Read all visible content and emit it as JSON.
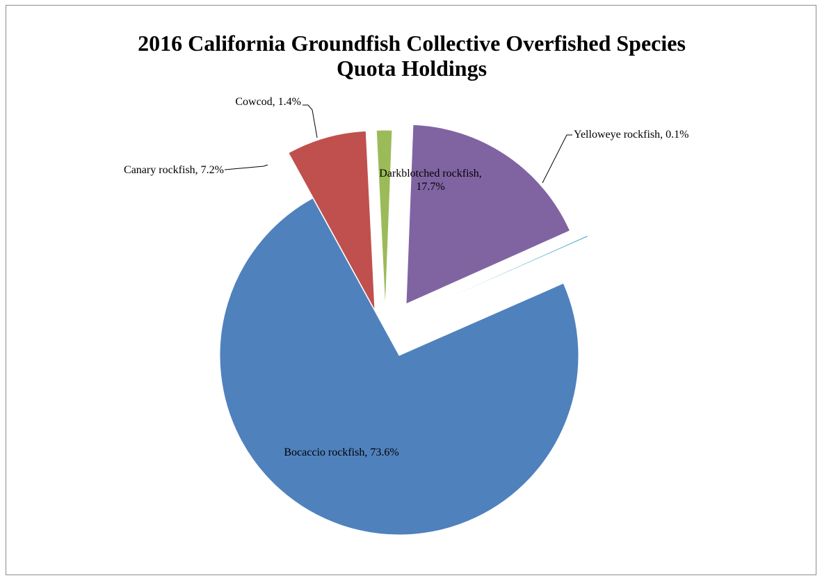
{
  "chart_data": {
    "type": "pie",
    "title_lines": [
      "2016 California Groundfish Collective Overfished Species",
      "Quota Holdings"
    ],
    "slices": [
      {
        "name": "Bocaccio rockfish",
        "value": 73.6,
        "label": "Bocaccio rockfish, 73.6%",
        "color": "#4f81bd"
      },
      {
        "name": "Canary rockfish",
        "value": 7.2,
        "label": "Canary rockfish, 7.2%",
        "color": "#c0504d"
      },
      {
        "name": "Cowcod",
        "value": 1.4,
        "label": "Cowcod, 1.4%",
        "color": "#9bbb59"
      },
      {
        "name": "Darkblotched rockfish",
        "value": 17.7,
        "label_lines": [
          "Darkblotched rockfish,",
          "17.7%"
        ],
        "color": "#8064a2"
      },
      {
        "name": "Yelloweye rockfish",
        "value": 0.1,
        "label": "Yelloweye rockfish, 0.1%",
        "color": "#4bacc6"
      }
    ],
    "legend": "none"
  }
}
